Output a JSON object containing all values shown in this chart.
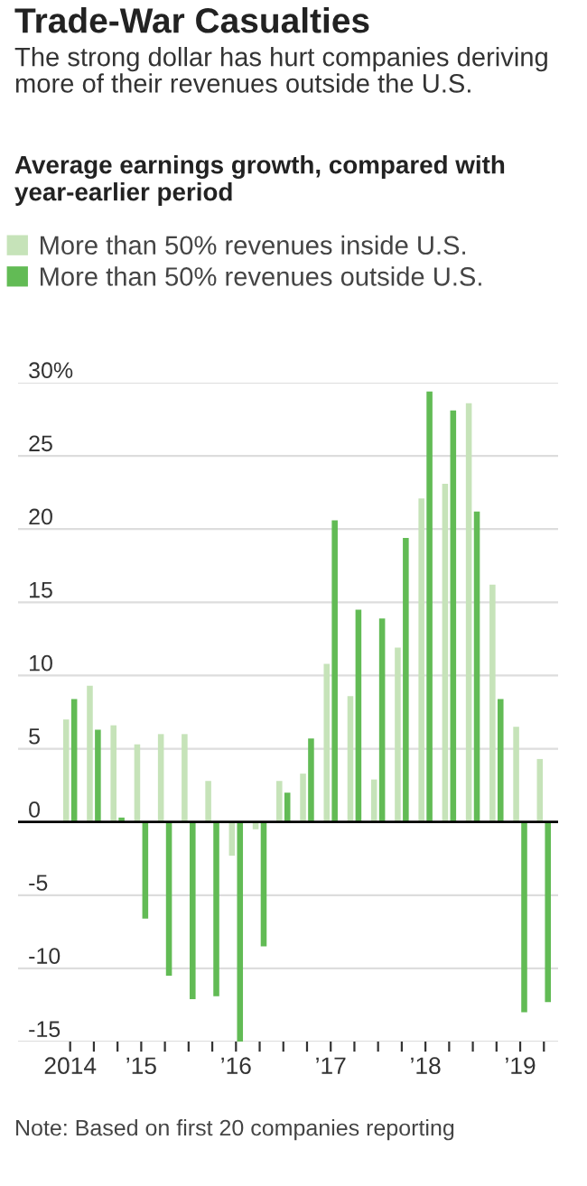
{
  "chart_data": {
    "type": "bar",
    "title": "Trade-War Casualties",
    "subtitle": "The strong dollar has hurt companies deriving more of their revenues outside the U.S.",
    "categories": [
      "2014",
      null,
      null,
      "’15",
      null,
      null,
      null,
      "’16",
      null,
      null,
      null,
      "’17",
      null,
      null,
      null,
      "’18",
      null,
      null,
      null,
      "’19",
      null
    ],
    "series": [
      {
        "name": "More than 50% revenues inside U.S.",
        "color": "#c6e3b9",
        "values": [
          7.0,
          9.3,
          6.6,
          5.3,
          6.0,
          6.0,
          2.8,
          -2.3,
          -0.5,
          2.8,
          3.3,
          10.8,
          8.6,
          2.9,
          11.9,
          22.1,
          23.1,
          28.6,
          16.2,
          6.5,
          4.3
        ]
      },
      {
        "name": "More than 50% revenues outside U.S.",
        "color": "#62bb55",
        "values": [
          8.4,
          6.3,
          0.3,
          -6.6,
          -10.5,
          -12.1,
          -11.9,
          -15.0,
          -8.5,
          2.0,
          5.7,
          20.6,
          14.5,
          13.9,
          19.4,
          29.4,
          28.1,
          21.2,
          8.4,
          -13.0,
          -12.3
        ]
      }
    ],
    "ylim": [
      -15,
      30
    ],
    "yticks": [
      {
        "value": 30,
        "label": "30%"
      },
      25,
      20,
      15,
      10,
      5,
      0,
      -5,
      -10,
      -15
    ],
    "grid": "y",
    "legend": "top left",
    "ref_lines": [
      {
        "axis": "y",
        "value": 0,
        "color": "#000000"
      }
    ],
    "annotations": [
      "Average earnings growth, compared with year-earlier period",
      "Note: Based on first 20 companies reporting"
    ]
  }
}
